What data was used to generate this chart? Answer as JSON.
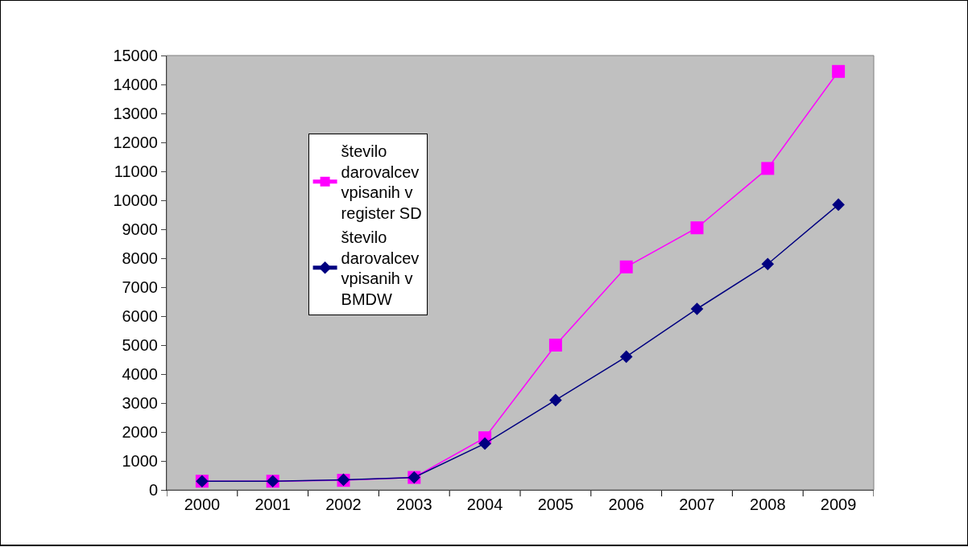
{
  "chart_data": {
    "type": "line",
    "categories": [
      "2000",
      "2001",
      "2002",
      "2003",
      "2004",
      "2005",
      "2006",
      "2007",
      "2008",
      "2009"
    ],
    "series": [
      {
        "name": "število darovalcev vpisanih v register SD",
        "color": "#ff00ff",
        "marker": "square",
        "values": [
          300,
          300,
          330,
          430,
          1800,
          5000,
          7700,
          9050,
          11100,
          14450
        ]
      },
      {
        "name": "število darovalcev vpisanih v BMDW",
        "color": "#000080",
        "marker": "diamond",
        "values": [
          300,
          300,
          350,
          430,
          1600,
          3100,
          4600,
          6250,
          7800,
          9850
        ]
      }
    ],
    "ylim": [
      0,
      15000
    ],
    "yticks": [
      0,
      1000,
      2000,
      3000,
      4000,
      5000,
      6000,
      7000,
      8000,
      9000,
      10000,
      11000,
      12000,
      13000,
      14000,
      15000
    ],
    "grid": false,
    "legend": "top left",
    "line_style": "solid"
  }
}
